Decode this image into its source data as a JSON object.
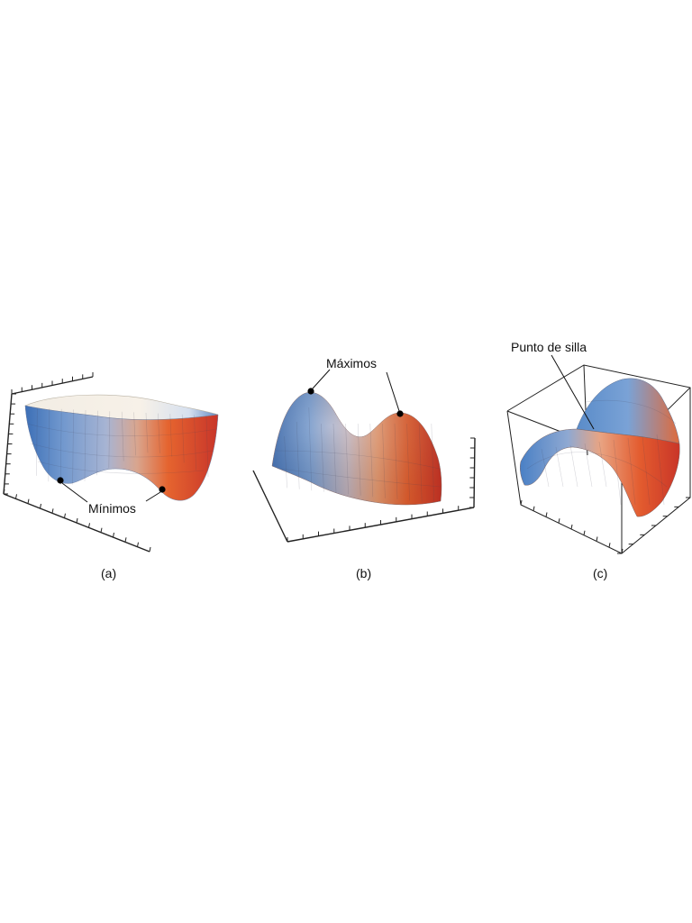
{
  "panels": {
    "a": {
      "caption": "(a)",
      "annotation": "Mínimos",
      "colors": {
        "low": "#3f73b8",
        "mid": "#b9c6de",
        "high": "#d8412a"
      }
    },
    "b": {
      "caption": "(b)",
      "annotation": "Máximos",
      "colors": {
        "low": "#4677bf",
        "mid": "#c4b2b8",
        "high": "#e0522c"
      }
    },
    "c": {
      "caption": "(c)",
      "annotation": "Punto de silla",
      "colors": {
        "low": "#4b82c6",
        "mid": "#d8b3ad",
        "high": "#d8432b"
      }
    }
  }
}
